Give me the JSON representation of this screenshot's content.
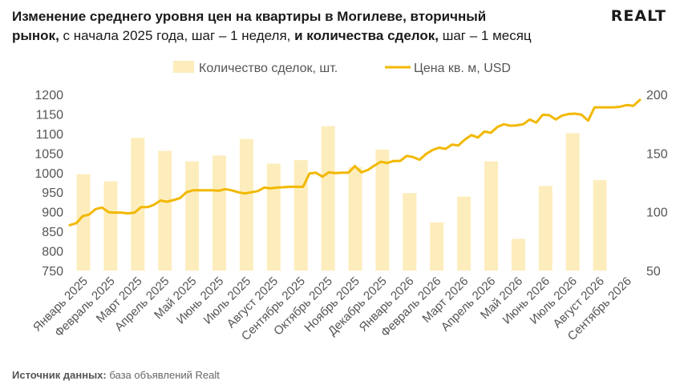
{
  "header": {
    "title_bold": "Изменение среднего уровня цен на квартиры в Могилеве, вторичный",
    "line2_bold_a": "рынок,",
    "line2_reg_a": " с начала 2025 года, шаг – 1 неделя,",
    "line2_bold_b": " и количества сделок,",
    "line2_reg_b": " шаг – 1 месяц"
  },
  "logo": {
    "text": "REALT"
  },
  "footer": {
    "label": "Источник данных:",
    "text": " база объявлений Realt"
  },
  "colors": {
    "bars": "#fdedbc",
    "line": "#f2b800",
    "text": "#555555"
  },
  "chart_data": {
    "type": "bar+line",
    "categories": [
      "Январь 2025",
      "Февраль 2025",
      "Март 2025",
      "Апрель 2025",
      "Май 2025",
      "Июнь 2025",
      "Июль 2025",
      "Август 2025",
      "Сентябрь 2025",
      "Октябрь 2025",
      "Ноябрь 2025",
      "Декабрь 2025",
      "Январь 2026",
      "Февраль 2026",
      "Март 2026",
      "Апрель 2026",
      "Май 2026",
      "Июнь 2026",
      "Июль 2026",
      "Август 2026",
      "Сентябрь 2026"
    ],
    "legend": {
      "bars": "Количество сделок, шт.",
      "line": "Цена кв. м, USD",
      "position": "top"
    },
    "bars": {
      "name": "Количество сделок, шт.",
      "axis": "right",
      "values": [
        132,
        126,
        163,
        152,
        143,
        148,
        162,
        141,
        144,
        173,
        138,
        153,
        116,
        91,
        113,
        143,
        77,
        122,
        167,
        127
      ]
    },
    "line": {
      "name": "Цена кв. м, USD",
      "axis": "left",
      "values": [
        866,
        871,
        889,
        893,
        907,
        911,
        899,
        898,
        898,
        896,
        898,
        912,
        912,
        918,
        929,
        926,
        930,
        935,
        950,
        955,
        955,
        955,
        955,
        954,
        958,
        955,
        950,
        947,
        950,
        953,
        962,
        960,
        962,
        963,
        964,
        964,
        964,
        998,
        1000,
        990,
        1001,
        999,
        1000,
        1000,
        1017,
        1001,
        1007,
        1018,
        1028,
        1025,
        1030,
        1030,
        1043,
        1040,
        1033,
        1048,
        1058,
        1064,
        1061,
        1072,
        1070,
        1085,
        1096,
        1090,
        1105,
        1102,
        1117,
        1124,
        1120,
        1121,
        1124,
        1136,
        1128,
        1148,
        1147,
        1136,
        1146,
        1150,
        1151,
        1148,
        1133,
        1167,
        1167,
        1167,
        1167,
        1169,
        1173,
        1171,
        1186
      ]
    },
    "y_left": {
      "min": 750,
      "max": 1200,
      "ticks": [
        750,
        800,
        850,
        900,
        950,
        1000,
        1050,
        1100,
        1150,
        1200
      ]
    },
    "y_right": {
      "min": 50,
      "max": 200,
      "ticks": [
        50,
        100,
        150,
        200
      ]
    },
    "grid": false
  }
}
